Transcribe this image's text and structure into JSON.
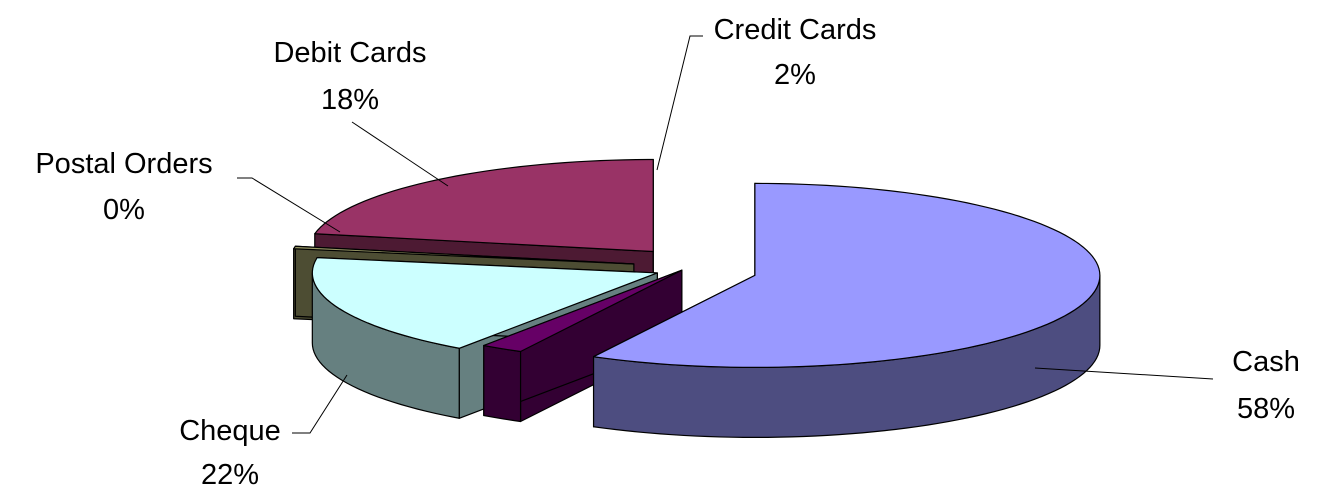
{
  "chart_data": {
    "type": "pie",
    "style": "3d-exploded",
    "slices": [
      {
        "name": "Cash",
        "value": 58,
        "label": "58%",
        "color": "#9999ff",
        "side": "#4d4d80"
      },
      {
        "name": "Credit Cards",
        "value": 2,
        "label": "2%",
        "color": "#660066",
        "side": "#330033"
      },
      {
        "name": "Debit Cards",
        "value": 18,
        "label": "18%",
        "color": "#ccffff",
        "side": "#668080"
      },
      {
        "name": "Postal Orders",
        "value": 0,
        "label": "0%",
        "color": "#999966",
        "side": "#4d4d33"
      },
      {
        "name": "Cheque",
        "value": 22,
        "label": "22%",
        "color": "#993366",
        "side": "#4d1a33"
      }
    ],
    "legend": "none",
    "data_labels": "category and percentage"
  }
}
